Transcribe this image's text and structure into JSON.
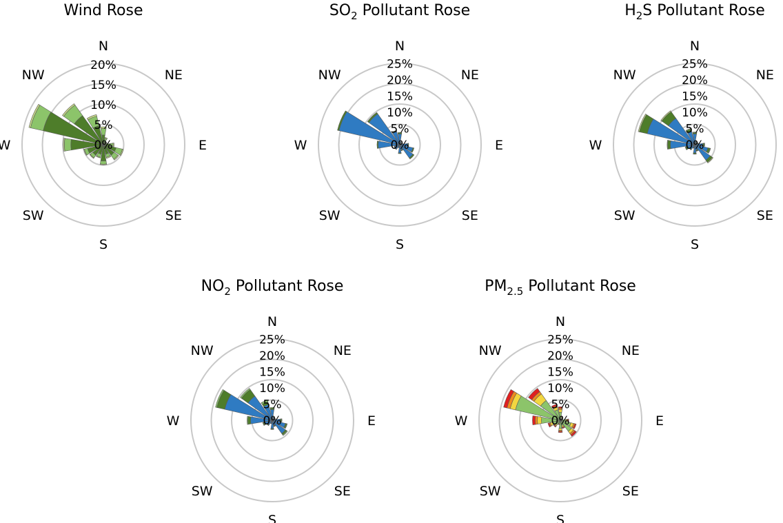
{
  "chart_data": [
    {
      "type": "polar-bar",
      "title": "Wind Rose",
      "directions": [
        "N",
        "NNE",
        "NE",
        "ENE",
        "E",
        "ESE",
        "SE",
        "SSE",
        "S",
        "SSW",
        "SW",
        "WSW",
        "W",
        "WNW",
        "NW",
        "NNW"
      ],
      "compass_labels": [
        "N",
        "NE",
        "E",
        "SE",
        "S",
        "SW",
        "W",
        "NW"
      ],
      "ticks": [
        "0%",
        "5%",
        "10%",
        "15%",
        "20%"
      ],
      "rmax": 25,
      "series": [
        {
          "color": "#4e7d2a",
          "values": [
            3,
            1,
            0.5,
            0.5,
            2,
            4,
            4,
            3,
            5,
            3,
            4,
            5,
            10,
            19,
            11,
            6
          ]
        },
        {
          "color": "#8cc46a",
          "values": [
            2,
            1,
            0.5,
            0.5,
            1,
            2,
            1.5,
            1,
            1,
            1,
            1,
            1,
            2,
            4,
            4,
            3
          ]
        },
        {
          "color": "#c8da88",
          "values": [
            0.5,
            0.3,
            0.2,
            0.2,
            0.3,
            0.3,
            0.3,
            0.3,
            0.2,
            0.2,
            0.2,
            0.2,
            0.3,
            0.5,
            0.5,
            0.5
          ]
        }
      ]
    },
    {
      "type": "polar-bar",
      "title": "SO",
      "title_sub": "2",
      "title_tail": " Pollutant Rose",
      "directions": [
        "N",
        "NNE",
        "NE",
        "ENE",
        "E",
        "ESE",
        "SE",
        "SSE",
        "S",
        "SSW",
        "SW",
        "WSW",
        "W",
        "WNW",
        "NW",
        "NNW"
      ],
      "compass_labels": [
        "N",
        "NE",
        "E",
        "SE",
        "S",
        "SW",
        "W",
        "NW"
      ],
      "ticks": [
        "0%",
        "5%",
        "10%",
        "15%",
        "20%",
        "25%"
      ],
      "rmax": 30,
      "series": [
        {
          "color": "#2f7bc2",
          "values": [
            4,
            1,
            0.5,
            1,
            3,
            5,
            6,
            2,
            3,
            1,
            2,
            2,
            8,
            23,
            14,
            5
          ]
        },
        {
          "color": "#4e7d2a",
          "values": [
            0.5,
            0.2,
            0.2,
            0.2,
            0.3,
            0.4,
            0.5,
            0.3,
            0.3,
            0.2,
            0.2,
            0.2,
            0.4,
            0.6,
            0.6,
            0.4
          ]
        }
      ]
    },
    {
      "type": "polar-bar",
      "title": "H",
      "title_sub": "2",
      "title_tail": "S Pollutant Rose",
      "directions": [
        "N",
        "NNE",
        "NE",
        "ENE",
        "E",
        "ESE",
        "SE",
        "SSE",
        "S",
        "SSW",
        "SW",
        "WSW",
        "W",
        "WNW",
        "NW",
        "NNW"
      ],
      "compass_labels": [
        "N",
        "NE",
        "E",
        "SE",
        "S",
        "SW",
        "W",
        "NW"
      ],
      "ticks": [
        "0%",
        "5%",
        "10%",
        "15%",
        "20%",
        "25%"
      ],
      "rmax": 30,
      "series": [
        {
          "color": "#2f7bc2",
          "values": [
            4,
            1,
            0.5,
            1,
            3,
            5,
            7,
            2,
            3,
            1,
            2,
            3,
            9,
            18,
            12,
            5
          ]
        },
        {
          "color": "#4e7d2a",
          "values": [
            0.5,
            0.3,
            0.3,
            0.3,
            0.5,
            0.8,
            1,
            0.4,
            0.4,
            0.3,
            0.3,
            0.5,
            1,
            3,
            3,
            1
          ]
        },
        {
          "color": "#c8da88",
          "values": [
            0.2,
            0.1,
            0.1,
            0.1,
            0.2,
            0.2,
            0.3,
            0.1,
            0.1,
            0.1,
            0.1,
            0.1,
            0.2,
            0.4,
            0.4,
            0.2
          ]
        }
      ]
    },
    {
      "type": "polar-bar",
      "title": "NO",
      "title_sub": "2",
      "title_tail": " Pollutant Rose",
      "directions": [
        "N",
        "NNE",
        "NE",
        "ENE",
        "E",
        "ESE",
        "SE",
        "SSE",
        "S",
        "SSW",
        "SW",
        "WSW",
        "W",
        "WNW",
        "NW",
        "NNW"
      ],
      "compass_labels": [
        "N",
        "NE",
        "E",
        "SE",
        "S",
        "SW",
        "W",
        "NW"
      ],
      "ticks": [
        "0%",
        "5%",
        "10%",
        "15%",
        "20%",
        "25%"
      ],
      "rmax": 30,
      "series": [
        {
          "color": "#2f7bc2",
          "values": [
            4,
            1,
            0.5,
            1,
            3,
            5,
            6,
            2,
            3,
            1,
            2,
            3,
            8,
            18,
            11,
            6
          ]
        },
        {
          "color": "#4e7d2a",
          "values": [
            0.5,
            0.2,
            0.2,
            0.2,
            0.4,
            0.5,
            0.6,
            0.3,
            0.3,
            0.2,
            0.3,
            0.4,
            1,
            3,
            3,
            1
          ]
        },
        {
          "color": "#8cc46a",
          "values": [
            0.3,
            0.1,
            0.1,
            0.1,
            0.2,
            0.2,
            0.3,
            0.1,
            0.1,
            0.1,
            0.1,
            0.2,
            0.3,
            0.5,
            0.5,
            0.6
          ]
        }
      ]
    },
    {
      "type": "polar-bar",
      "title": "PM",
      "title_sub": "2.5",
      "title_tail": " Pollutant Rose",
      "directions": [
        "N",
        "NNE",
        "NE",
        "ENE",
        "E",
        "ESE",
        "SE",
        "SSE",
        "S",
        "SSW",
        "SW",
        "WSW",
        "W",
        "WNW",
        "NW",
        "NNW"
      ],
      "compass_labels": [
        "N",
        "NE",
        "E",
        "SE",
        "S",
        "SW",
        "W",
        "NW"
      ],
      "ticks": [
        "0%",
        "5%",
        "10%",
        "15%",
        "20%",
        "25%"
      ],
      "rmax": 30,
      "series": [
        {
          "color": "#8cc46a",
          "values": [
            3,
            1,
            0.5,
            0.5,
            2,
            4,
            5,
            2,
            3,
            1,
            2,
            3,
            7,
            17,
            9,
            4
          ]
        },
        {
          "color": "#f2d640",
          "values": [
            1,
            0.3,
            0.2,
            0.2,
            0.5,
            1,
            1,
            0.5,
            0.7,
            0.3,
            0.5,
            0.8,
            1.5,
            2,
            3,
            1
          ]
        },
        {
          "color": "#f08a1e",
          "values": [
            0.5,
            0.2,
            0.1,
            0.1,
            0.3,
            0.5,
            0.6,
            0.3,
            0.4,
            0.2,
            0.3,
            0.4,
            0.8,
            1.2,
            1,
            0.5
          ]
        },
        {
          "color": "#e02020",
          "values": [
            0.5,
            0.2,
            0.1,
            0.1,
            0.3,
            0.5,
            0.7,
            0.3,
            0.4,
            0.2,
            0.3,
            0.5,
            1,
            1.3,
            1.5,
            0.6
          ]
        }
      ]
    }
  ]
}
